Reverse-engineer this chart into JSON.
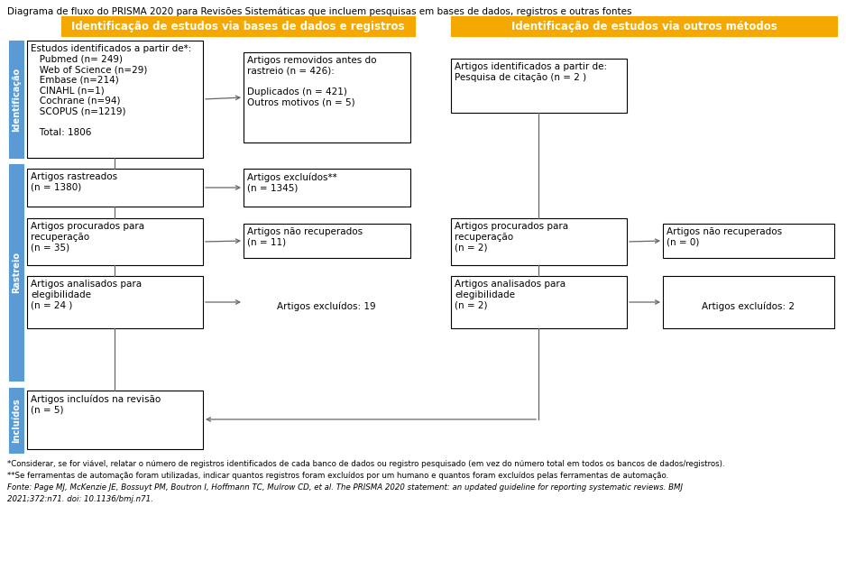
{
  "title": "Diagrama de fluxo do PRISMA 2020 para Revisões Sistemáticas que incluem pesquisas em bases de dados, registros e outras fontes",
  "header1": "Identificação de estudos via bases de dados e registros",
  "header2": "Identificação de estudos via outros métodos",
  "side_labels": [
    "Identificação",
    "Rastreio",
    "Incluídos"
  ],
  "header_color": "#f5a800",
  "header_text_color": "#ffffff",
  "side_color": "#5b9bd5",
  "box_edge_color": "#000000",
  "box_fill_color": "#ffffff",
  "arrow_color": "#666666",
  "footnote1": "*Considerar, se for viável, relatar o número de registros identificados de cada banco de dados ou registro pesquisado (em vez do número total em todos os bancos de dados/registros).",
  "footnote2": "**Se ferramentas de automação foram utilizadas, indicar quantos registros foram excluídos por um humano e quantos foram excluídos pelas ferramentas de automação.",
  "footnote3": "Fonte: Page MJ, McKenzie JE, Bossuyt PM, Boutron I, Hoffmann TC, Mulrow CD, et al. The PRISMA 2020 statement: an updated guideline for reporting systematic reviews. BMJ",
  "footnote4": "2021;372:n71. doi: 10.1136/bmj.n71.",
  "box1_text": "Estudos identificados a partir de*:\n   Pubmed (n= 249)\n   Web of Science (n=29)\n   Embase (n=214)\n   CINAHL (n=1)\n   Cochrane (n=94)\n   SCOPUS (n=1219)\n\n   Total: 1806",
  "box2_text": "Artigos removidos antes do\nrastreio (n = 426):\n\nDuplicados (n = 421)\nOutros motivos (n = 5)",
  "box3_text": "Artigos identificados a partir de:\nPesquisa de citação (n = 2 )",
  "box4_text": "Artigos rastreados\n(n = 1380)",
  "box5_text": "Artigos excluídos**\n(n = 1345)",
  "box6_text": "Artigos procurados para\nrecuperação\n(n = 35)",
  "box7_text": "Artigos não recuperados\n(n = 11)",
  "box8_text": "Artigos procurados para\nrecuperação\n(n = 2)",
  "box9_text": "Artigos não recuperados\n(n = 0)",
  "box10_text": "Artigos analisados para\nelegibilidade\n(n = 24 )",
  "box11_text": "Artigos excluídos: 19",
  "box12_text": "Artigos analisados para\nelegibilidade\n(n = 2)",
  "box13_text": "Artigos excluídos: 2",
  "box14_text": "Artigos incluídos na revisão\n(n = 5)"
}
